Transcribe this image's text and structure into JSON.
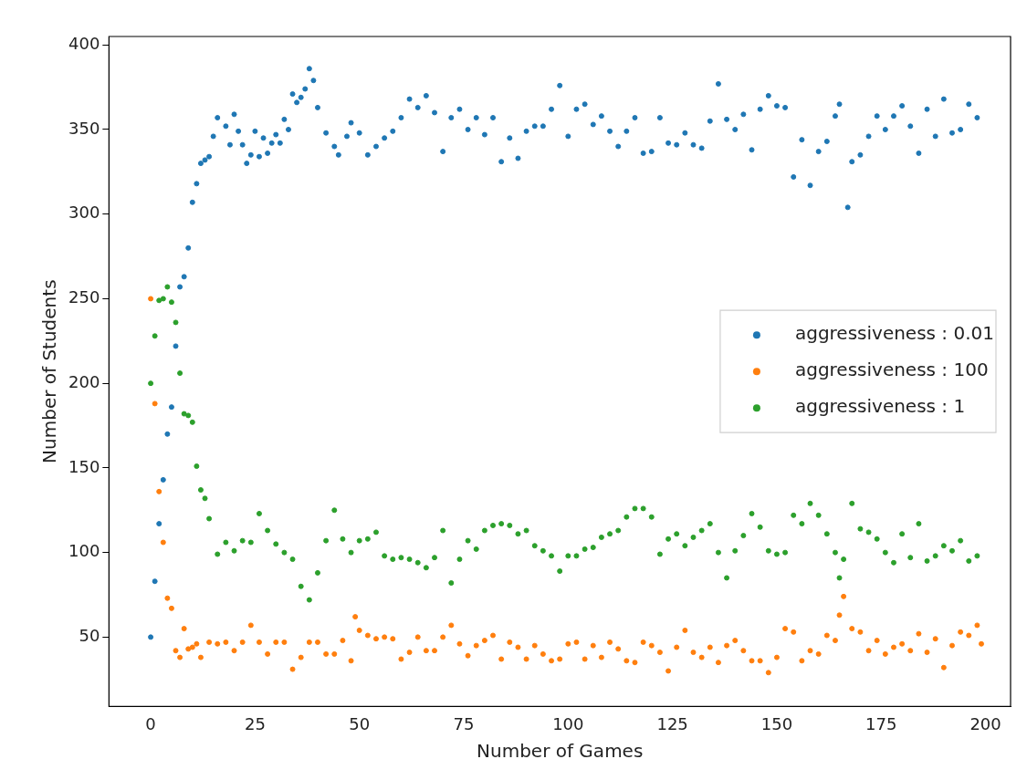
{
  "chart_data": {
    "type": "scatter",
    "xlabel": "Number of Games",
    "ylabel": "Number of Students",
    "xlim": [
      -10,
      206
    ],
    "xticks": [
      0,
      25,
      50,
      75,
      100,
      125,
      150,
      175,
      200
    ],
    "ylim": [
      9,
      405
    ],
    "yticks": [
      50,
      100,
      150,
      200,
      250,
      300,
      350,
      400
    ],
    "grid": false,
    "legend": "right",
    "marker": "circle",
    "series": [
      {
        "name": "aggressiveness : 0.01",
        "color": "#1f77b4",
        "x": [
          0,
          1,
          2,
          3,
          4,
          5,
          6,
          7,
          8,
          9,
          10,
          11,
          12,
          13,
          14,
          15,
          16,
          18,
          19,
          20,
          21,
          22,
          23,
          24,
          25,
          26,
          27,
          28,
          29,
          30,
          31,
          32,
          33,
          34,
          35,
          36,
          37,
          38,
          39,
          40,
          42,
          44,
          45,
          47,
          48,
          50,
          52,
          54,
          56,
          58,
          60,
          62,
          64,
          66,
          68,
          70,
          72,
          74,
          76,
          78,
          80,
          82,
          84,
          86,
          88,
          90,
          92,
          94,
          96,
          98,
          100,
          102,
          104,
          106,
          108,
          110,
          112,
          114,
          116,
          118,
          120,
          122,
          124,
          126,
          128,
          130,
          132,
          134,
          136,
          138,
          140,
          142,
          144,
          146,
          148,
          150,
          152,
          154,
          156,
          158,
          160,
          162,
          164,
          165,
          167,
          168,
          170,
          172,
          174,
          176,
          178,
          180,
          182,
          184,
          186,
          188,
          190,
          192,
          194,
          196,
          198
        ],
        "values": [
          50,
          83,
          117,
          143,
          170,
          186,
          222,
          257,
          263,
          280,
          307,
          318,
          330,
          332,
          334,
          346,
          357,
          352,
          341,
          359,
          349,
          341,
          330,
          335,
          349,
          334,
          345,
          336,
          342,
          347,
          342,
          356,
          350,
          371,
          366,
          369,
          374,
          386,
          379,
          363,
          348,
          340,
          335,
          346,
          354,
          348,
          335,
          340,
          345,
          349,
          357,
          368,
          363,
          370,
          360,
          337,
          357,
          362,
          350,
          357,
          347,
          357,
          331,
          345,
          333,
          349,
          352,
          352,
          362,
          376,
          346,
          362,
          365,
          353,
          358,
          349,
          340,
          349,
          357,
          336,
          337,
          357,
          342,
          341,
          348,
          341,
          339,
          355,
          377,
          356,
          350,
          359,
          338,
          362,
          370,
          364,
          363,
          322,
          344,
          317,
          337,
          343,
          358,
          365,
          304,
          331,
          335,
          346,
          358,
          350,
          358,
          364,
          352,
          336,
          362,
          346,
          368,
          348,
          350,
          365,
          357
        ]
      },
      {
        "name": "aggressiveness : 100",
        "color": "#ff7f0e",
        "x": [
          0,
          1,
          2,
          3,
          4,
          5,
          6,
          7,
          8,
          9,
          10,
          11,
          12,
          14,
          16,
          18,
          20,
          22,
          24,
          26,
          28,
          30,
          32,
          34,
          36,
          38,
          40,
          42,
          44,
          46,
          48,
          49,
          50,
          52,
          54,
          56,
          58,
          60,
          62,
          64,
          66,
          68,
          70,
          72,
          74,
          76,
          78,
          80,
          82,
          84,
          86,
          88,
          90,
          92,
          94,
          96,
          98,
          100,
          102,
          104,
          106,
          108,
          110,
          112,
          114,
          116,
          118,
          120,
          122,
          124,
          126,
          128,
          130,
          132,
          134,
          136,
          138,
          140,
          142,
          144,
          146,
          148,
          150,
          152,
          154,
          156,
          158,
          160,
          162,
          164,
          165,
          166,
          168,
          170,
          172,
          174,
          176,
          178,
          180,
          182,
          184,
          186,
          188,
          190,
          192,
          194,
          196,
          198,
          199
        ],
        "values": [
          250,
          188,
          136,
          106,
          73,
          67,
          42,
          38,
          55,
          43,
          44,
          46,
          38,
          47,
          46,
          47,
          42,
          47,
          57,
          47,
          40,
          47,
          47,
          31,
          38,
          47,
          47,
          40,
          40,
          48,
          36,
          62,
          54,
          51,
          49,
          50,
          49,
          37,
          41,
          50,
          42,
          42,
          50,
          57,
          46,
          39,
          45,
          48,
          51,
          37,
          47,
          44,
          37,
          45,
          40,
          36,
          37,
          46,
          47,
          37,
          45,
          38,
          47,
          43,
          36,
          35,
          47,
          45,
          41,
          30,
          44,
          54,
          41,
          38,
          44,
          35,
          45,
          48,
          42,
          36,
          36,
          29,
          38,
          55,
          53,
          36,
          42,
          40,
          51,
          48,
          63,
          74,
          55,
          53,
          42,
          48,
          40,
          44,
          46,
          42,
          52,
          41,
          49,
          32,
          45,
          53,
          51,
          57,
          46
        ]
      },
      {
        "name": "aggressiveness : 1",
        "color": "#2ca02c",
        "x": [
          0,
          1,
          2,
          3,
          4,
          5,
          6,
          7,
          8,
          9,
          10,
          11,
          12,
          13,
          14,
          16,
          18,
          20,
          22,
          24,
          26,
          28,
          30,
          32,
          34,
          36,
          38,
          40,
          42,
          44,
          46,
          48,
          50,
          52,
          54,
          56,
          58,
          60,
          62,
          64,
          66,
          68,
          70,
          72,
          74,
          76,
          78,
          80,
          82,
          84,
          86,
          88,
          90,
          92,
          94,
          96,
          98,
          100,
          102,
          104,
          106,
          108,
          110,
          112,
          114,
          116,
          118,
          120,
          122,
          124,
          126,
          128,
          130,
          132,
          134,
          136,
          138,
          140,
          142,
          144,
          146,
          148,
          150,
          152,
          154,
          156,
          158,
          160,
          162,
          164,
          165,
          166,
          168,
          170,
          172,
          174,
          176,
          178,
          180,
          182,
          184,
          186,
          188,
          190,
          192,
          194,
          196,
          198
        ],
        "values": [
          200,
          228,
          249,
          250,
          257,
          248,
          236,
          206,
          182,
          181,
          177,
          151,
          137,
          132,
          120,
          99,
          106,
          101,
          107,
          106,
          123,
          113,
          105,
          100,
          96,
          80,
          72,
          88,
          107,
          125,
          108,
          100,
          107,
          108,
          112,
          98,
          96,
          97,
          96,
          94,
          91,
          97,
          113,
          82,
          96,
          107,
          102,
          113,
          116,
          117,
          116,
          111,
          113,
          104,
          101,
          98,
          89,
          98,
          98,
          102,
          103,
          109,
          111,
          113,
          121,
          126,
          126,
          121,
          99,
          108,
          111,
          104,
          109,
          113,
          117,
          100,
          85,
          101,
          110,
          123,
          115,
          101,
          99,
          100,
          122,
          117,
          129,
          122,
          111,
          100,
          85,
          96,
          129,
          114,
          112,
          108,
          100,
          94,
          111,
          97,
          117,
          95,
          98,
          104,
          101,
          107,
          95,
          98
        ]
      }
    ]
  }
}
